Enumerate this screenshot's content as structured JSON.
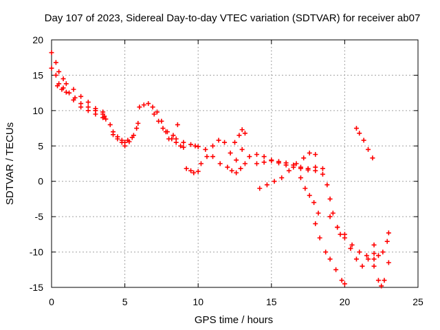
{
  "chart_data": {
    "type": "scatter",
    "title": "Day 107 of 2023, Sidereal Day-to-day VTEC variation (SDTVAR) for receiver ab07",
    "xlabel": "GPS time / hours",
    "ylabel": "SDTVAR / TECUs",
    "xlim": [
      0,
      25
    ],
    "ylim": [
      -15,
      20
    ],
    "x_ticks": [
      "0",
      "5",
      "10",
      "15",
      "20",
      "25"
    ],
    "y_ticks": [
      "-15",
      "-10",
      "-5",
      "0",
      "5",
      "10",
      "15",
      "20"
    ],
    "x_tick_values": [
      0,
      5,
      10,
      15,
      20,
      25
    ],
    "y_tick_values": [
      -15,
      -10,
      -5,
      0,
      5,
      10,
      15,
      20
    ],
    "grid": true,
    "marker": "plus",
    "color": "#ff0000",
    "series": [
      {
        "x": [
          0.0,
          0.0,
          0.3,
          0.5,
          0.8,
          1.2,
          1.6,
          2.0,
          2.5,
          3.0,
          3.5,
          3.7
        ],
        "y": [
          18.2,
          16.0,
          15.0,
          13.8,
          13.2,
          12.5,
          11.8,
          11.0,
          10.5,
          10.0,
          9.5,
          8.8
        ]
      },
      {
        "x": [
          0.3,
          0.5,
          0.8,
          1.0,
          1.5,
          2.0,
          2.5,
          3.0,
          3.5,
          3.6
        ],
        "y": [
          16.8,
          15.5,
          14.5,
          13.8,
          13.0,
          12.0,
          11.2,
          10.3,
          9.8,
          9.2
        ]
      },
      {
        "x": [
          0.4,
          0.7,
          1.0,
          1.5,
          2.0,
          2.5,
          3.0,
          3.5
        ],
        "y": [
          13.5,
          13.0,
          12.6,
          11.5,
          10.5,
          10.0,
          9.5,
          9.0
        ]
      },
      {
        "x": [
          4.0,
          4.2,
          4.5,
          4.8,
          5.0,
          5.2,
          5.5,
          5.8
        ],
        "y": [
          8.0,
          7.0,
          6.3,
          5.8,
          5.5,
          5.8,
          6.2,
          7.5
        ]
      },
      {
        "x": [
          4.2,
          4.5,
          4.8,
          5.0,
          5.3,
          5.6,
          5.9
        ],
        "y": [
          6.6,
          6.0,
          5.5,
          5.0,
          5.6,
          6.5,
          8.2
        ]
      },
      {
        "x": [
          6.0,
          6.3,
          6.6,
          6.9,
          7.2,
          7.5,
          7.8,
          8.0,
          8.3,
          8.6
        ],
        "y": [
          10.5,
          10.8,
          11.0,
          10.5,
          9.8,
          8.5,
          7.0,
          6.0,
          6.5,
          8.0
        ]
      },
      {
        "x": [
          7.0,
          7.3,
          7.6,
          7.9,
          8.2,
          8.5,
          8.8,
          9.0
        ],
        "y": [
          9.5,
          8.5,
          7.5,
          7.0,
          6.0,
          5.5,
          5.0,
          4.8
        ]
      },
      {
        "x": [
          8.5,
          9.0,
          9.5,
          9.8,
          10.0
        ],
        "y": [
          6.0,
          5.5,
          5.2,
          5.0,
          4.9
        ]
      },
      {
        "x": [
          9.2,
          9.5,
          9.7,
          10.0
        ],
        "y": [
          1.8,
          1.5,
          1.2,
          1.4
        ]
      },
      {
        "x": [
          10.2,
          10.6,
          11.0,
          11.4,
          11.8,
          12.2,
          12.6,
          13.0
        ],
        "y": [
          2.5,
          3.5,
          5.0,
          5.8,
          5.5,
          4.0,
          3.0,
          4.5
        ]
      },
      {
        "x": [
          10.5,
          11.0,
          11.5,
          12.0,
          12.3,
          12.6,
          12.9,
          13.2
        ],
        "y": [
          4.5,
          3.5,
          2.5,
          2.0,
          1.5,
          1.2,
          1.8,
          2.5
        ]
      },
      {
        "x": [
          12.5,
          12.8,
          13.0,
          13.2
        ],
        "y": [
          5.5,
          6.5,
          7.3,
          6.8
        ]
      },
      {
        "x": [
          13.5,
          14.0,
          14.5,
          15.0,
          15.5,
          16.0,
          16.5,
          17.0,
          17.5,
          18.0,
          18.5
        ],
        "y": [
          3.5,
          3.8,
          3.5,
          3.0,
          2.8,
          2.6,
          2.3,
          2.0,
          1.8,
          2.0,
          1.8
        ]
      },
      {
        "x": [
          14.0,
          14.5,
          15.0,
          15.5,
          16.0,
          16.5,
          17.0,
          17.5,
          18.0
        ],
        "y": [
          2.5,
          2.7,
          2.9,
          2.6,
          2.3,
          2.0,
          1.8,
          1.6,
          1.5
        ]
      },
      {
        "x": [
          14.2,
          14.7,
          15.2,
          15.7,
          16.2,
          16.7,
          17.2,
          17.6,
          18.0
        ],
        "y": [
          -1.0,
          -0.5,
          0.0,
          0.5,
          1.5,
          2.5,
          3.3,
          4.0,
          3.8
        ]
      },
      {
        "x": [
          17.0,
          17.3,
          17.6,
          17.9,
          18.2
        ],
        "y": [
          0.5,
          -1.0,
          -2.0,
          -3.0,
          -4.5
        ]
      },
      {
        "x": [
          18.5,
          18.8,
          19.0,
          19.2,
          19.5,
          19.7
        ],
        "y": [
          1.0,
          -0.5,
          -2.5,
          -4.5,
          -6.5,
          -7.5
        ]
      },
      {
        "x": [
          18.0,
          18.3,
          18.7,
          19.0,
          19.4,
          19.8,
          20.0
        ],
        "y": [
          -6.0,
          -8.0,
          -10.0,
          -11.0,
          -12.5,
          -14.0,
          -14.5
        ]
      },
      {
        "x": [
          19.0,
          19.5,
          20.0,
          20.5,
          21.0,
          21.5,
          22.0
        ],
        "y": [
          -5.0,
          -6.5,
          -7.5,
          -9.0,
          -10.0,
          -10.5,
          -10.2
        ]
      },
      {
        "x": [
          20.0,
          20.4,
          20.8,
          21.2,
          21.6,
          22.0
        ],
        "y": [
          -8.0,
          -9.5,
          -11.0,
          -12.0,
          -11.0,
          -9.0
        ]
      },
      {
        "x": [
          20.8,
          21.0,
          21.3,
          21.6,
          21.9
        ],
        "y": [
          7.5,
          6.8,
          5.8,
          4.5,
          3.3
        ]
      },
      {
        "x": [
          22.0,
          22.3,
          22.5,
          22.7,
          23.0
        ],
        "y": [
          -12.0,
          -14.0,
          -14.8,
          -14.0,
          -11.5
        ]
      },
      {
        "x": [
          22.0,
          22.3,
          22.6,
          22.9,
          23.0
        ],
        "y": [
          -11.0,
          -10.5,
          -10.0,
          -8.5,
          -7.3
        ]
      }
    ]
  }
}
